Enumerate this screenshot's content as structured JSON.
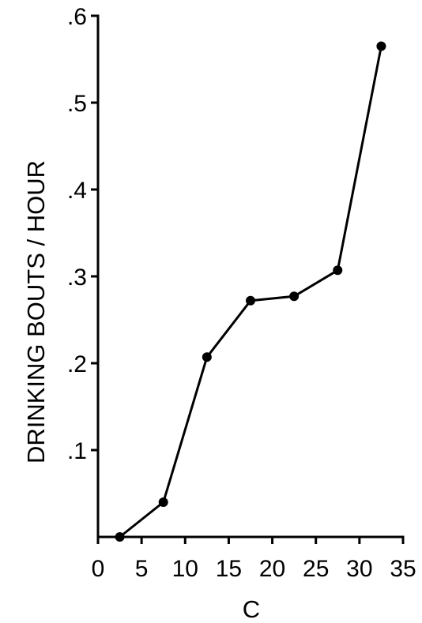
{
  "chart_data": {
    "type": "line",
    "title": "",
    "xlabel": "C",
    "ylabel": "DRINKING BOUTS / HOUR",
    "xlim": [
      0,
      35
    ],
    "ylim": [
      0,
      0.6
    ],
    "x_ticks": [
      "0",
      "5",
      "10",
      "15",
      "20",
      "25",
      "30",
      "35"
    ],
    "y_ticks": [
      ".1",
      ".2",
      ".3",
      ".4",
      ".5",
      ".6"
    ],
    "series": [
      {
        "x": [
          2.5,
          7.5,
          12.5,
          17.5,
          22.5,
          27.5,
          32.5
        ],
        "values": [
          0.0,
          0.04,
          0.207,
          0.272,
          0.277,
          0.307,
          0.565
        ]
      }
    ],
    "grid": false,
    "colors": {
      "line": "#000000",
      "marker": "#000000"
    }
  }
}
